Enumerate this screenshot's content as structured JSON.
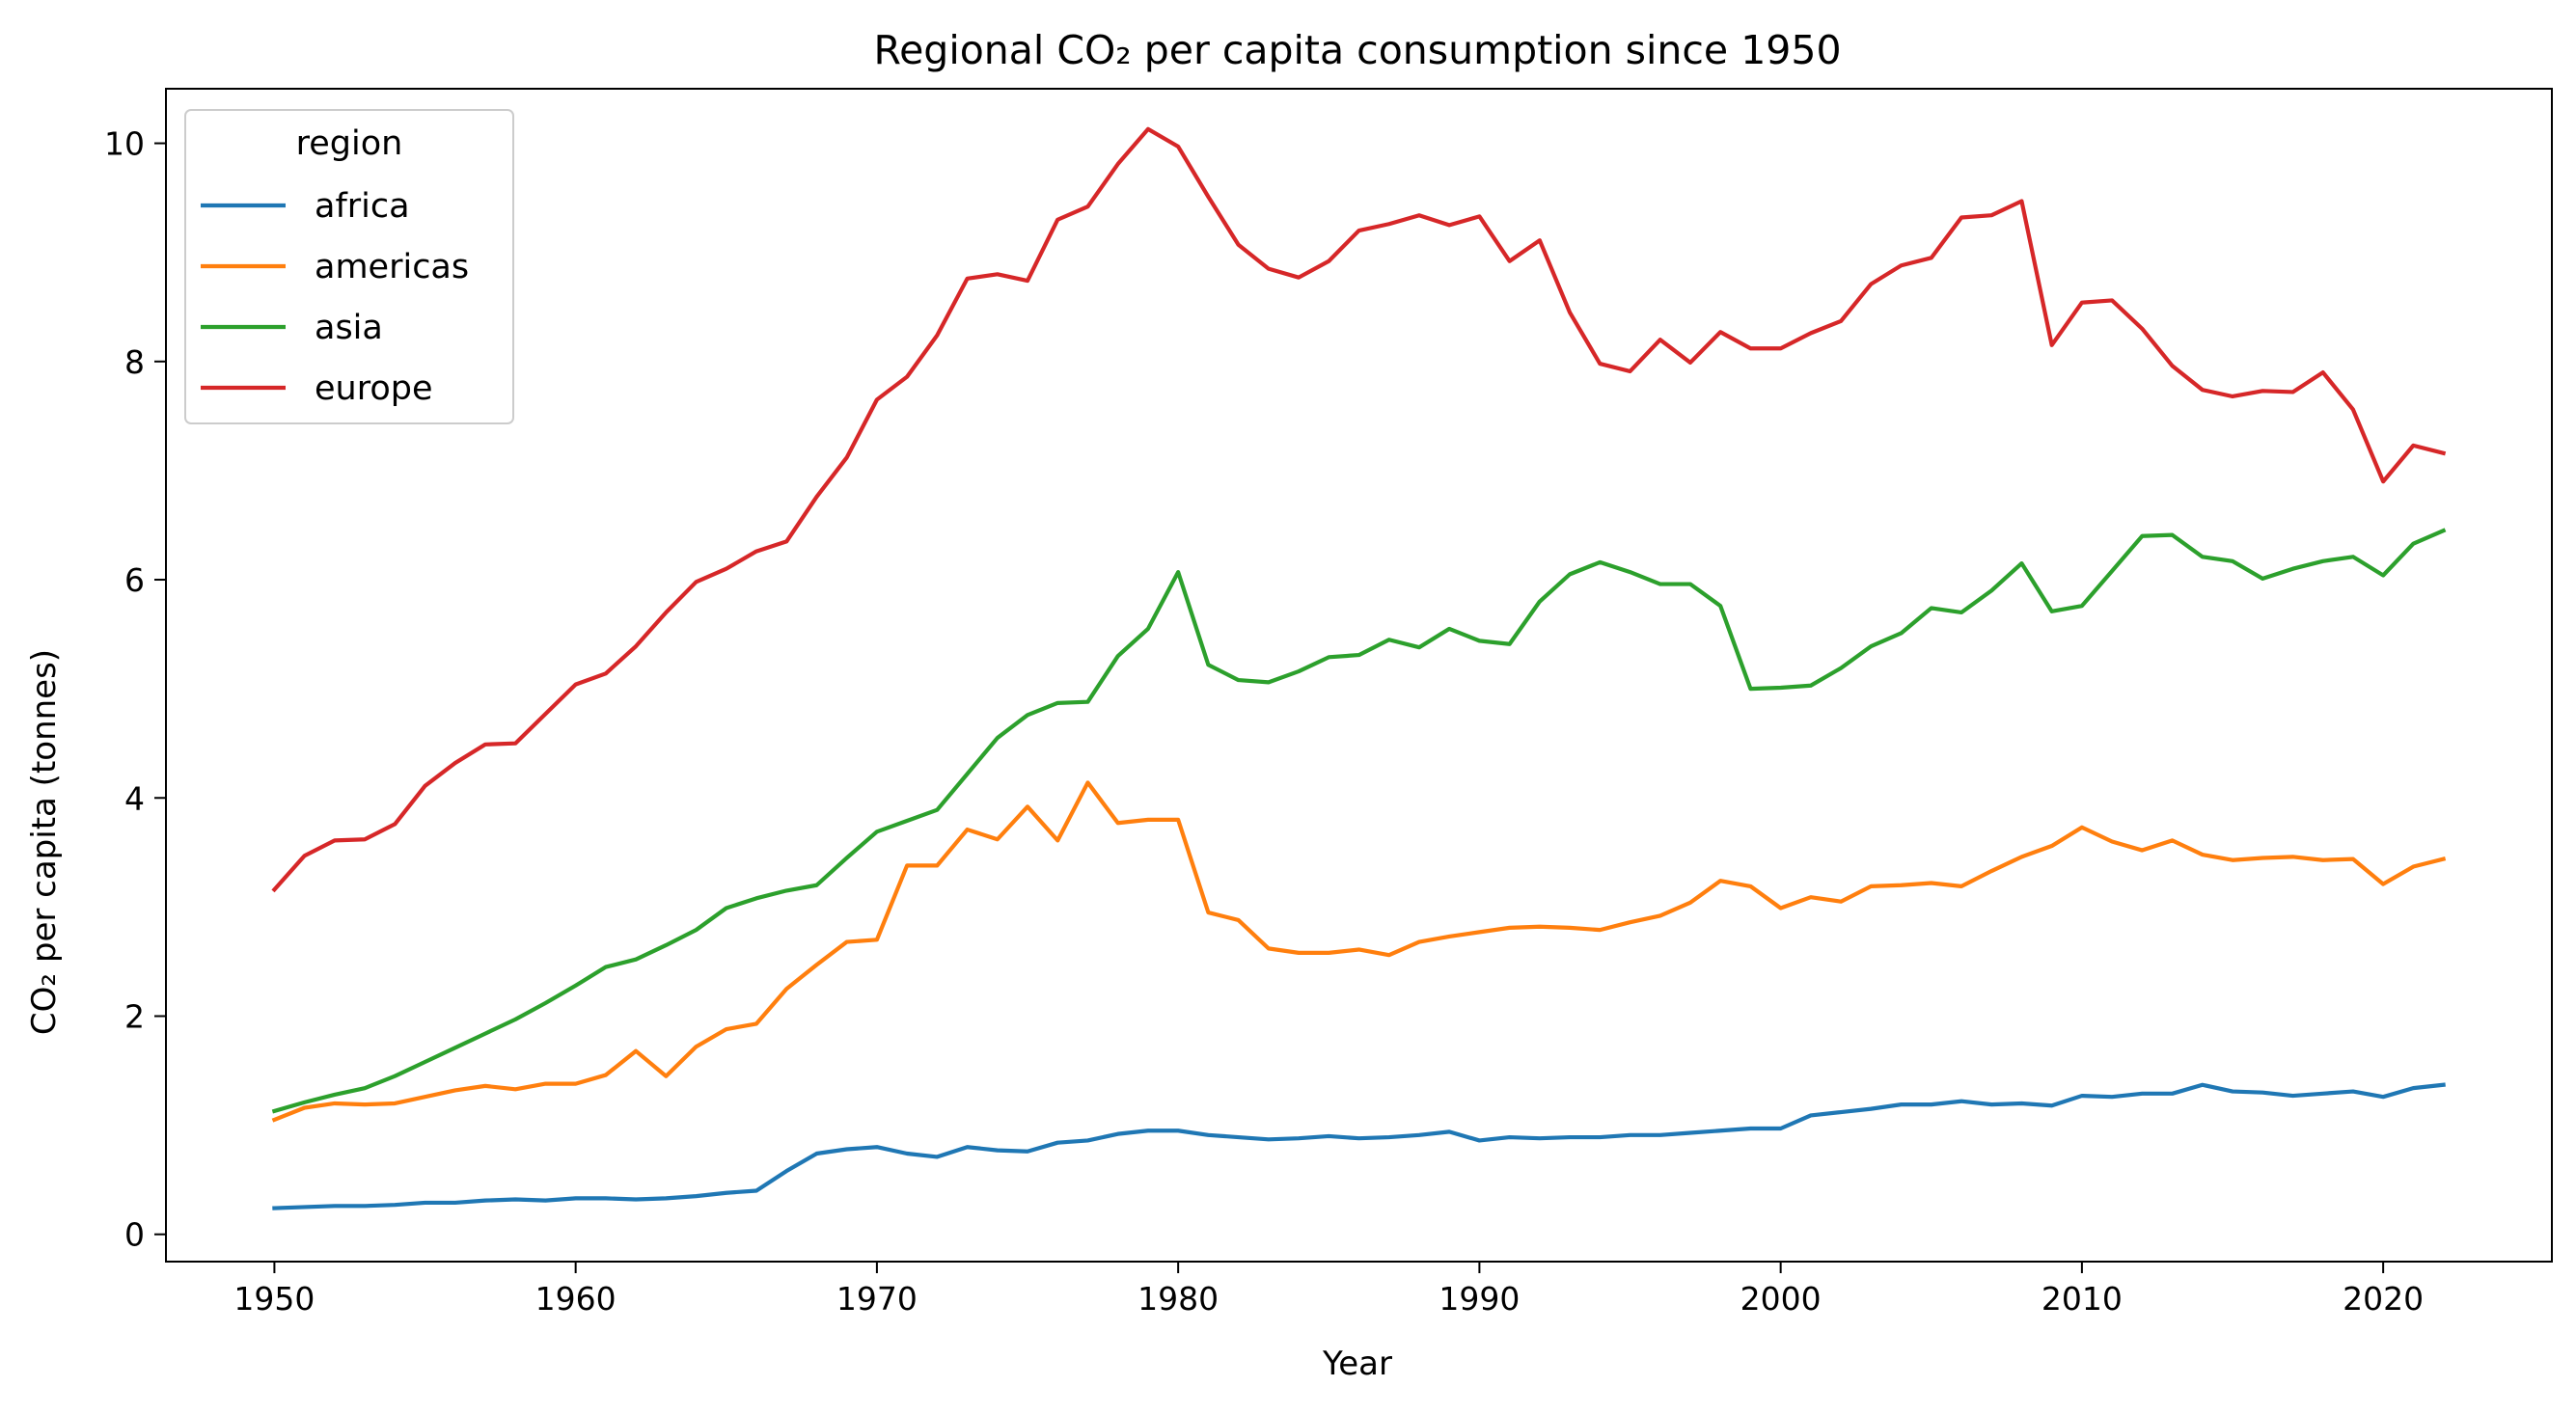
{
  "chart_data": {
    "type": "line",
    "title": "Regional CO₂ per capita consumption since 1950",
    "xlabel": "Year",
    "ylabel": "CO₂ per capita (tonnes)",
    "xlim": [
      1946.4,
      2025.6
    ],
    "ylim": [
      -0.25,
      10.5
    ],
    "xticks": [
      1950,
      1960,
      1970,
      1980,
      1990,
      2000,
      2010,
      2020
    ],
    "yticks": [
      0,
      2,
      4,
      6,
      8,
      10
    ],
    "grid": false,
    "legend": {
      "title": "region",
      "placement": "top-left"
    },
    "x": [
      1950,
      1951,
      1952,
      1953,
      1954,
      1955,
      1956,
      1957,
      1958,
      1959,
      1960,
      1961,
      1962,
      1963,
      1964,
      1965,
      1966,
      1967,
      1968,
      1969,
      1970,
      1971,
      1972,
      1973,
      1974,
      1975,
      1976,
      1977,
      1978,
      1979,
      1980,
      1981,
      1982,
      1983,
      1984,
      1985,
      1986,
      1987,
      1988,
      1989,
      1990,
      1991,
      1992,
      1993,
      1994,
      1995,
      1996,
      1997,
      1998,
      1999,
      2000,
      2001,
      2002,
      2003,
      2004,
      2005,
      2006,
      2007,
      2008,
      2009,
      2010,
      2011,
      2012,
      2013,
      2014,
      2015,
      2016,
      2017,
      2018,
      2019,
      2020,
      2021,
      2022
    ],
    "series": [
      {
        "name": "africa",
        "color": "#1f77b4",
        "values": [
          0.24,
          0.25,
          0.26,
          0.26,
          0.27,
          0.29,
          0.29,
          0.31,
          0.32,
          0.31,
          0.33,
          0.33,
          0.32,
          0.33,
          0.35,
          0.38,
          0.4,
          0.58,
          0.74,
          0.78,
          0.8,
          0.74,
          0.71,
          0.8,
          0.77,
          0.76,
          0.84,
          0.86,
          0.92,
          0.95,
          0.95,
          0.91,
          0.89,
          0.87,
          0.88,
          0.9,
          0.88,
          0.89,
          0.91,
          0.94,
          0.86,
          0.89,
          0.88,
          0.89,
          0.89,
          0.91,
          0.91,
          0.93,
          0.95,
          0.97,
          0.97,
          1.09,
          1.12,
          1.15,
          1.19,
          1.19,
          1.22,
          1.19,
          1.2,
          1.18,
          1.27,
          1.26,
          1.29,
          1.29,
          1.37,
          1.31,
          1.3,
          1.27,
          1.29,
          1.31,
          1.26,
          1.34,
          1.37
        ]
      },
      {
        "name": "americas",
        "color": "#ff7f0e",
        "values": [
          1.05,
          1.16,
          1.2,
          1.19,
          1.2,
          1.26,
          1.32,
          1.36,
          1.33,
          1.38,
          1.38,
          1.46,
          1.68,
          1.45,
          1.72,
          1.88,
          1.93,
          2.25,
          2.47,
          2.68,
          2.7,
          3.38,
          3.38,
          3.71,
          3.62,
          3.92,
          3.61,
          4.14,
          3.77,
          3.8,
          3.8,
          2.95,
          2.88,
          2.62,
          2.58,
          2.58,
          2.61,
          2.56,
          2.68,
          2.73,
          2.77,
          2.81,
          2.82,
          2.81,
          2.79,
          2.86,
          2.92,
          3.04,
          3.24,
          3.19,
          2.99,
          3.09,
          3.05,
          3.19,
          3.2,
          3.22,
          3.19,
          3.33,
          3.46,
          3.56,
          3.73,
          3.6,
          3.52,
          3.61,
          3.48,
          3.43,
          3.45,
          3.46,
          3.43,
          3.44,
          3.21,
          3.37,
          3.44
        ]
      },
      {
        "name": "asia",
        "color": "#2ca02c",
        "values": [
          1.13,
          1.21,
          1.28,
          1.34,
          1.45,
          1.58,
          1.71,
          1.84,
          1.97,
          2.12,
          2.28,
          2.45,
          2.52,
          2.65,
          2.79,
          2.99,
          3.08,
          3.15,
          3.2,
          3.45,
          3.69,
          3.79,
          3.89,
          4.22,
          4.55,
          4.76,
          4.87,
          4.88,
          5.3,
          5.55,
          6.07,
          5.22,
          5.08,
          5.06,
          5.16,
          5.29,
          5.31,
          5.45,
          5.38,
          5.55,
          5.44,
          5.41,
          5.8,
          6.05,
          6.16,
          6.07,
          5.96,
          5.96,
          5.76,
          5.0,
          5.01,
          5.03,
          5.19,
          5.39,
          5.51,
          5.74,
          5.7,
          5.9,
          6.15,
          5.71,
          5.76,
          6.08,
          6.4,
          6.41,
          6.21,
          6.17,
          6.01,
          6.1,
          6.17,
          6.21,
          6.04,
          6.33,
          6.45
        ]
      },
      {
        "name": "europe",
        "color": "#d62728",
        "values": [
          3.16,
          3.47,
          3.61,
          3.62,
          3.76,
          4.11,
          4.32,
          4.49,
          4.5,
          4.77,
          5.04,
          5.14,
          5.39,
          5.7,
          5.98,
          6.1,
          6.26,
          6.35,
          6.76,
          7.12,
          7.65,
          7.86,
          8.24,
          8.76,
          8.8,
          8.74,
          9.3,
          9.42,
          9.81,
          10.13,
          9.97,
          9.51,
          9.07,
          8.85,
          8.77,
          8.92,
          9.2,
          9.26,
          9.34,
          9.25,
          9.33,
          8.92,
          9.11,
          8.45,
          7.98,
          7.91,
          8.2,
          7.99,
          8.27,
          8.12,
          8.12,
          8.26,
          8.37,
          8.71,
          8.88,
          8.95,
          9.32,
          9.34,
          9.47,
          8.15,
          8.54,
          8.56,
          8.3,
          7.96,
          7.74,
          7.68,
          7.73,
          7.72,
          7.9,
          7.56,
          6.9,
          7.23,
          7.16
        ]
      }
    ]
  }
}
